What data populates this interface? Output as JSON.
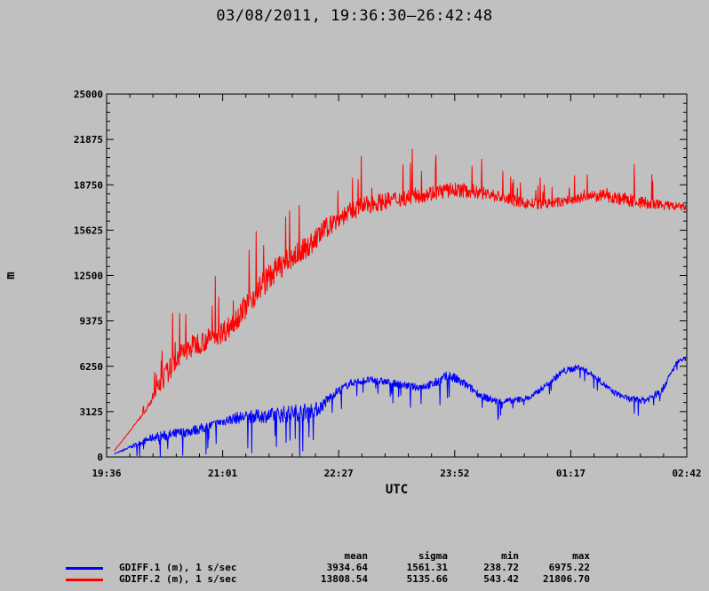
{
  "title": "03/08/2011, 19:36:30–26:42:48",
  "chart_data": {
    "type": "line",
    "title": "03/08/2011, 19:36:30–26:42:48",
    "xlabel": "UTC",
    "ylabel": "m",
    "x_tick_labels": [
      "19:36",
      "21:01",
      "22:27",
      "23:52",
      "01:17",
      "02:42"
    ],
    "y_ticks": [
      0,
      3125,
      6250,
      9375,
      12500,
      15625,
      18750,
      21875,
      25000
    ],
    "ylim": [
      0,
      25000
    ],
    "xlim_hours": [
      19.608,
      26.713
    ],
    "grid": false,
    "legend_placement": "bottom",
    "series": [
      {
        "name": "GDIFF.1 (m), 1 s/sec",
        "color": "#0000ff",
        "x_hours": [
          19.7,
          20.2,
          20.4,
          20.6,
          20.8,
          21.0,
          21.2,
          21.4,
          21.6,
          21.8,
          22.0,
          22.2,
          22.4,
          22.6,
          22.8,
          23.0,
          23.2,
          23.4,
          23.6,
          23.8,
          24.0,
          24.2,
          24.4,
          24.6,
          24.8,
          25.0,
          25.2,
          25.4,
          25.6,
          25.8,
          26.0,
          26.2,
          26.4,
          26.6,
          26.7
        ],
        "values": [
          200,
          1400,
          1500,
          1750,
          2000,
          2400,
          2700,
          2800,
          2850,
          2950,
          3100,
          3300,
          4400,
          5100,
          5300,
          5200,
          5000,
          4800,
          5000,
          5600,
          5000,
          4200,
          3800,
          3900,
          4100,
          5000,
          5900,
          6200,
          5500,
          4500,
          4000,
          3900,
          4500,
          6600,
          6800
        ],
        "noise": [
          0,
          600,
          800,
          700,
          700,
          600,
          800,
          900,
          1000,
          1200,
          1200,
          1000,
          600,
          500,
          500,
          500,
          500,
          500,
          600,
          800,
          600,
          500,
          500,
          400,
          400,
          400,
          500,
          400,
          400,
          400,
          400,
          500,
          500,
          300,
          200
        ],
        "summary": {
          "mean": "3934.64",
          "sigma": "1561.31",
          "min": "238.72",
          "max": "6975.22"
        }
      },
      {
        "name": "GDIFF.2 (m), 1 s/sec",
        "color": "#ff0000",
        "x_hours": [
          19.7,
          20.1,
          20.3,
          20.5,
          20.7,
          20.9,
          21.1,
          21.3,
          21.5,
          21.7,
          21.9,
          22.1,
          22.3,
          22.5,
          22.7,
          22.9,
          23.1,
          23.3,
          23.5,
          23.7,
          23.9,
          24.1,
          24.3,
          24.5,
          24.7,
          24.9,
          25.1,
          25.3,
          25.5,
          25.7,
          25.9,
          26.1,
          26.3,
          26.5,
          26.7
        ],
        "values": [
          400,
          3300,
          5400,
          7000,
          7800,
          8200,
          8900,
          10300,
          11800,
          13000,
          13800,
          14600,
          15800,
          16600,
          17200,
          17500,
          17700,
          17900,
          18100,
          18300,
          18400,
          18300,
          18100,
          17800,
          17500,
          17400,
          17500,
          17700,
          17900,
          18000,
          17800,
          17600,
          17400,
          17300,
          17200
        ],
        "noise": [
          0,
          200,
          1500,
          1500,
          1600,
          1500,
          1600,
          1700,
          1800,
          1700,
          1600,
          1500,
          1400,
          1300,
          1300,
          1200,
          1200,
          1100,
          1100,
          1100,
          1000,
          1000,
          900,
          800,
          800,
          700,
          700,
          700,
          800,
          800,
          900,
          900,
          800,
          600,
          500
        ],
        "summary": {
          "mean": "13808.54",
          "sigma": "5135.66",
          "min": "543.42",
          "max": "21806.70"
        }
      }
    ]
  },
  "legend": {
    "headers": [
      "mean",
      "sigma",
      "min",
      "max"
    ]
  }
}
